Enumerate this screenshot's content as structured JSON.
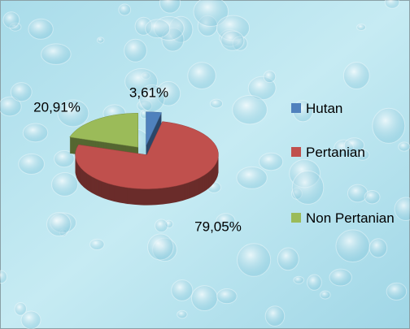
{
  "chart_data": {
    "type": "pie3d",
    "categories": [
      "Hutan",
      "Pertanian",
      "Non Pertanian"
    ],
    "values": [
      3.61,
      79.05,
      20.91
    ],
    "value_labels": [
      "3,61%",
      "79,05%",
      "20,91%"
    ],
    "colors": [
      "#4f81bd",
      "#c0504d",
      "#9bbb59"
    ],
    "legend": "right"
  }
}
